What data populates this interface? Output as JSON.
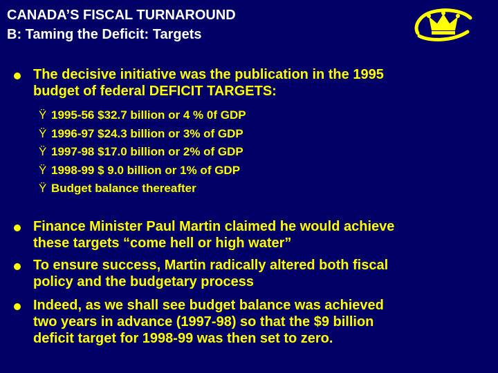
{
  "title": {
    "line1": "CANADA’S FISCAL TURNAROUND",
    "line2": "B: Taming the Deficit: Targets"
  },
  "bullets": [
    {
      "lines": [
        "The decisive initiative was the publication in the 1995",
        "budget of federal DEFICIT TARGETS:"
      ]
    },
    {
      "lines": [
        "Finance Minister Paul Martin claimed he would achieve",
        "these targets “come hell or high water”"
      ]
    },
    {
      "lines": [
        "To ensure success, Martin radically altered both fiscal",
        "policy and the budgetary process"
      ]
    },
    {
      "lines": [
        "Indeed, as we shall see budget balance was achieved",
        "two years in advance (1997-98) so that the $9 billion",
        "deficit target for 1998-99 was then set to zero."
      ]
    }
  ],
  "sub_marker": "Ÿ",
  "targets": [
    "1995-56  $32.7 billion or 4 % 0f GDP",
    "1996-97  $24.3 billion or 3% of GDP",
    "1997-98  $17.0 billion or 2% of GDP",
    "1998-99  $  9.0 billion or 1% of GDP",
    "Budget balance thereafter"
  ],
  "colors": {
    "background": "#000066",
    "title": "#ffffff",
    "text": "#ffff00",
    "logo": "#ffff00"
  },
  "logo_icon": "crown-logo-icon"
}
